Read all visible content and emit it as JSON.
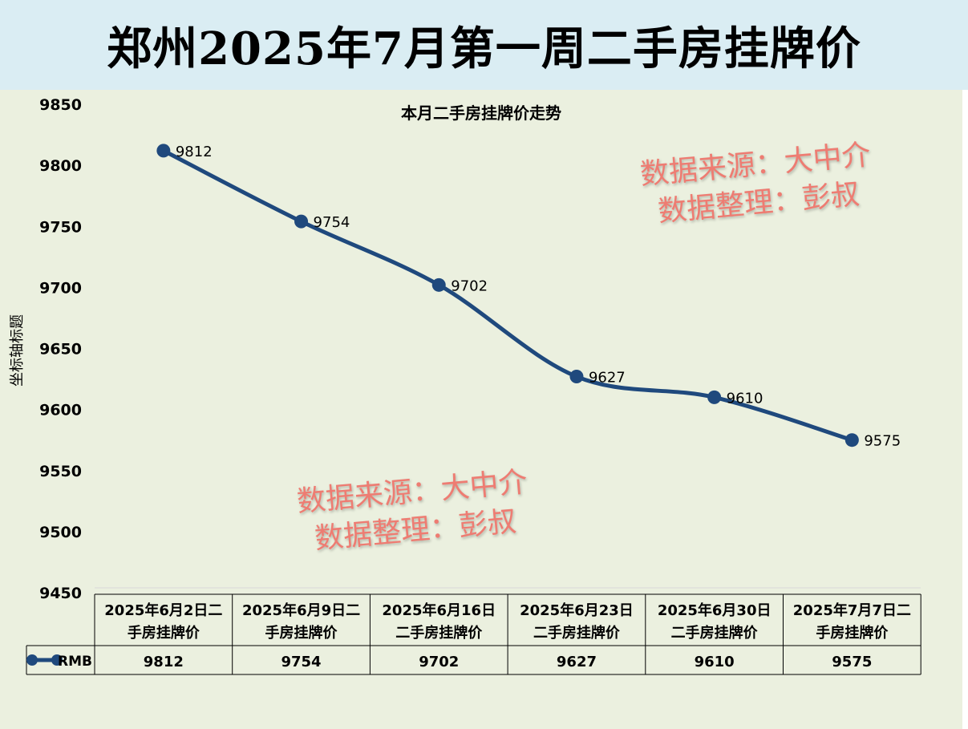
{
  "banner_title": "郑州2025年7月第一周二手房挂牌价",
  "watermark": {
    "line1": "数据来源：大中介",
    "line2": "数据整理：彭叔",
    "color": "#ee7c72"
  },
  "chart_data": {
    "type": "line",
    "title": "本月二手房挂牌价走势",
    "ylabel": "坐标轴标题",
    "xlabel": "",
    "ylim": [
      9450,
      9850
    ],
    "yticks": [
      9850,
      9800,
      9750,
      9700,
      9650,
      9600,
      9550,
      9500,
      9450
    ],
    "categories": [
      "2025年6月2日二手房挂牌价",
      "2025年6月9日二手房挂牌价",
      "2025年6月16日二手房挂牌价",
      "2025年6月23日二手房挂牌价",
      "2025年6月30日二手房挂牌价",
      "2025年7月7日二手房挂牌价"
    ],
    "category_lines": [
      [
        "2025年6月2日二",
        "手房挂牌价"
      ],
      [
        "2025年6月9日二",
        "手房挂牌价"
      ],
      [
        "2025年6月16日",
        "二手房挂牌价"
      ],
      [
        "2025年6月23日",
        "二手房挂牌价"
      ],
      [
        "2025年6月30日",
        "二手房挂牌价"
      ],
      [
        "2025年7月7日二",
        "手房挂牌价"
      ]
    ],
    "series": [
      {
        "name": "RMB",
        "values": [
          9812,
          9754,
          9702,
          9627,
          9610,
          9575
        ],
        "color": "#1f497d"
      }
    ],
    "smooth": true,
    "data_labels": true,
    "data_table": true,
    "grid": false
  }
}
